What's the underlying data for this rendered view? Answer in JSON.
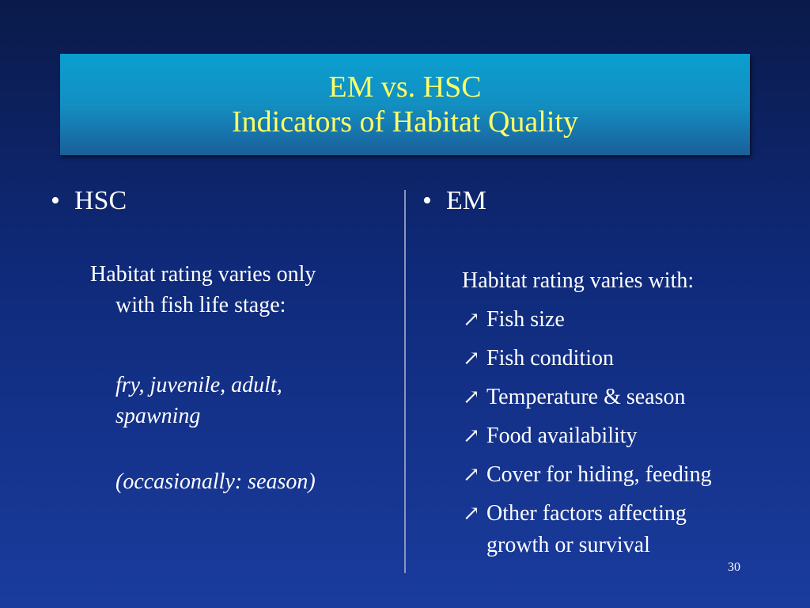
{
  "title": {
    "line1": "EM vs. HSC",
    "line2": "Indicators of Habitat Quality"
  },
  "left": {
    "bullet": "HSC",
    "para1_line1": "Habitat rating varies only",
    "para1_line2": "with fish life stage:",
    "para2_line1": "fry, juvenile, adult,",
    "para2_line2": "spawning",
    "para3": "(occasionally: season)"
  },
  "right": {
    "bullet": "EM",
    "intro": "Habitat rating varies with:",
    "items": [
      "Fish size",
      "Fish condition",
      "Temperature & season",
      "Food availability",
      "Cover for hiding, feeding",
      "Other factors affecting growth or survival"
    ],
    "arrow_glyph": "↗"
  },
  "slide_number": "30",
  "colors": {
    "title_text": "#ffff66",
    "title_box": "#0a9fd0",
    "background": "#0f2a7a"
  },
  "icons": {
    "list_marker": "arrow-northeast-icon"
  }
}
